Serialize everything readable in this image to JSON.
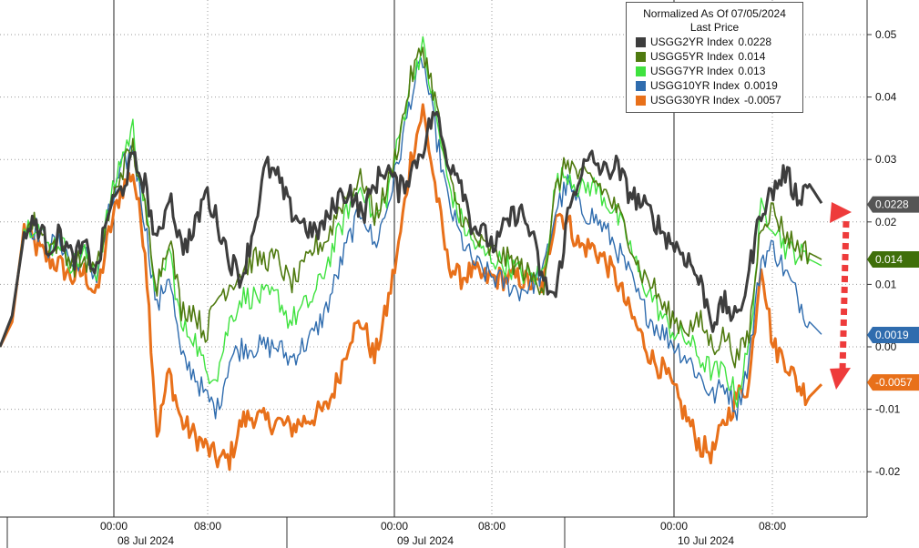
{
  "chart_data": {
    "type": "line",
    "title": "",
    "xlabel": "",
    "ylabel": "",
    "ylim": [
      -0.025,
      0.055
    ],
    "y_ticks": [
      0.05,
      0.04,
      0.03,
      0.02,
      0.01,
      0.0,
      -0.01,
      -0.02
    ],
    "y_tick_labels": [
      "0.05",
      "0.04",
      "0.03",
      "0.02",
      "0.01",
      "0.00",
      "-0.01",
      "-0.02"
    ],
    "grid": true,
    "x_time_labels": [
      "00:00",
      "08:00",
      "00:00",
      "08:00",
      "00:00",
      "08:00"
    ],
    "x_date_labels": [
      "08 Jul 2024",
      "09 Jul 2024",
      "10 Jul 2024"
    ],
    "legend": {
      "title": "Normalized As Of 07/05/2024",
      "subtitle": "Last Price",
      "placement": "top-right"
    },
    "series": [
      {
        "name": "USGG2YR Index",
        "last": "0.0228",
        "badge": "0.0228",
        "color": "#3d3d3d",
        "badge_color": "#555555",
        "width": 3.0,
        "values": [
          0.0,
          0.005,
          0.018,
          0.02,
          0.016,
          0.018,
          0.014,
          0.016,
          0.012,
          0.022,
          0.025,
          0.03,
          0.026,
          0.016,
          0.025,
          0.016,
          0.018,
          0.025,
          0.02,
          0.014,
          0.011,
          0.019,
          0.029,
          0.027,
          0.022,
          0.02,
          0.018,
          0.02,
          0.024,
          0.025,
          0.021,
          0.026,
          0.029,
          0.025,
          0.028,
          0.032,
          0.038,
          0.03,
          0.028,
          0.02,
          0.018,
          0.016,
          0.02,
          0.022,
          0.018,
          0.01,
          0.008,
          0.021,
          0.028,
          0.03,
          0.028,
          0.029,
          0.025,
          0.023,
          0.021,
          0.018,
          0.016,
          0.014,
          0.01,
          0.004,
          0.007,
          0.004,
          0.012,
          0.022,
          0.025,
          0.028,
          0.024,
          0.026,
          0.023
        ]
      },
      {
        "name": "USGG5YR Index",
        "last": "0.014",
        "badge": "0.014",
        "color": "#4f7a0f",
        "badge_color": "#3f6f0a",
        "width": 1.6,
        "values": [
          0.0,
          0.005,
          0.019,
          0.02,
          0.016,
          0.017,
          0.013,
          0.014,
          0.012,
          0.021,
          0.028,
          0.032,
          0.022,
          0.01,
          0.018,
          0.006,
          0.006,
          0.002,
          0.008,
          0.01,
          0.012,
          0.014,
          0.014,
          0.014,
          0.01,
          0.012,
          0.016,
          0.017,
          0.022,
          0.025,
          0.027,
          0.021,
          0.025,
          0.033,
          0.043,
          0.048,
          0.04,
          0.028,
          0.022,
          0.018,
          0.016,
          0.015,
          0.014,
          0.013,
          0.011,
          0.01,
          0.025,
          0.03,
          0.027,
          0.027,
          0.025,
          0.022,
          0.018,
          0.012,
          0.01,
          0.006,
          0.004,
          0.003,
          0.004,
          0.0,
          0.002,
          -0.002,
          0.002,
          0.02,
          0.022,
          0.018,
          0.016,
          0.015,
          0.014
        ]
      },
      {
        "name": "USGG7YR Index",
        "last": "0.013",
        "badge": "0.013",
        "color": "#3fe23f",
        "badge_color": "#33c933",
        "width": 1.4,
        "values": [
          0.0,
          0.005,
          0.019,
          0.02,
          0.016,
          0.017,
          0.013,
          0.015,
          0.012,
          0.022,
          0.03,
          0.035,
          0.022,
          0.008,
          0.016,
          0.003,
          0.002,
          -0.004,
          -0.004,
          0.004,
          0.008,
          0.008,
          0.008,
          0.008,
          0.004,
          0.006,
          0.008,
          0.013,
          0.018,
          0.023,
          0.026,
          0.02,
          0.024,
          0.033,
          0.043,
          0.048,
          0.038,
          0.027,
          0.021,
          0.017,
          0.015,
          0.014,
          0.013,
          0.012,
          0.011,
          0.012,
          0.026,
          0.028,
          0.025,
          0.026,
          0.024,
          0.021,
          0.017,
          0.011,
          0.008,
          0.004,
          0.002,
          0.001,
          -0.002,
          -0.004,
          -0.004,
          -0.008,
          0.0,
          0.022,
          0.02,
          0.016,
          0.015,
          0.014,
          0.013
        ]
      },
      {
        "name": "USGG10YR Index",
        "last": "0.0019",
        "badge": "0.0019",
        "color": "#2f6cae",
        "badge_color": "#2f6cae",
        "width": 1.4,
        "values": [
          0.0,
          0.005,
          0.019,
          0.019,
          0.016,
          0.017,
          0.013,
          0.015,
          0.011,
          0.021,
          0.028,
          0.032,
          0.02,
          0.006,
          0.012,
          -0.002,
          -0.004,
          -0.008,
          -0.01,
          -0.002,
          0.0,
          0.0,
          0.0,
          0.0,
          -0.002,
          0.0,
          0.002,
          0.006,
          0.012,
          0.018,
          0.022,
          0.016,
          0.022,
          0.03,
          0.04,
          0.046,
          0.035,
          0.024,
          0.018,
          0.014,
          0.012,
          0.011,
          0.01,
          0.009,
          0.01,
          0.012,
          0.022,
          0.026,
          0.022,
          0.021,
          0.019,
          0.016,
          0.012,
          0.007,
          0.004,
          0.002,
          0.0,
          -0.002,
          -0.005,
          -0.008,
          -0.006,
          -0.01,
          -0.002,
          0.014,
          0.016,
          0.012,
          0.008,
          0.004,
          0.002
        ]
      },
      {
        "name": "USGG30YR Index",
        "last": "-0.0057",
        "badge": "-0.0057",
        "color": "#e8701a",
        "badge_color": "#e8701a",
        "width": 3.0,
        "values": [
          0.0,
          0.004,
          0.019,
          0.016,
          0.014,
          0.013,
          0.011,
          0.012,
          0.008,
          0.018,
          0.025,
          0.028,
          0.016,
          -0.014,
          -0.004,
          -0.012,
          -0.014,
          -0.016,
          -0.018,
          -0.018,
          -0.012,
          -0.011,
          -0.012,
          -0.012,
          -0.013,
          -0.012,
          -0.011,
          -0.01,
          -0.005,
          0.002,
          0.004,
          -0.002,
          0.006,
          0.016,
          0.03,
          0.038,
          0.026,
          0.014,
          0.011,
          0.012,
          0.011,
          0.011,
          0.011,
          0.011,
          0.01,
          0.01,
          0.022,
          0.02,
          0.016,
          0.016,
          0.014,
          0.011,
          0.006,
          0.002,
          -0.002,
          -0.004,
          -0.008,
          -0.012,
          -0.016,
          -0.017,
          -0.012,
          -0.008,
          -0.006,
          0.014,
          0.0,
          -0.002,
          -0.006,
          -0.008,
          -0.006
        ]
      }
    ]
  }
}
